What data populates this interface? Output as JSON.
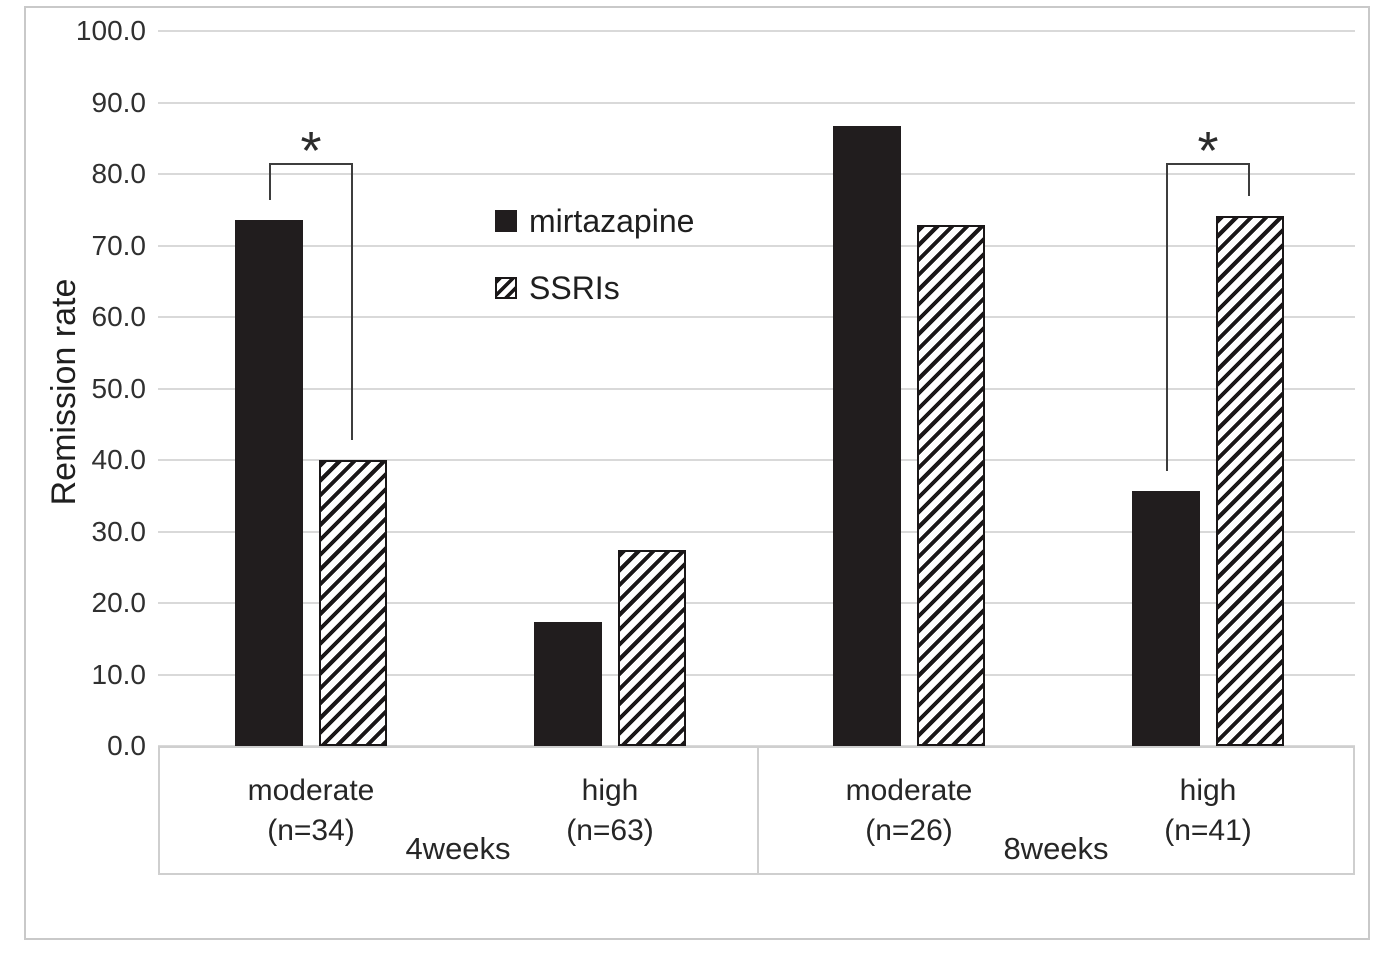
{
  "figure": {
    "background_color": "#ffffff",
    "border_color": "#c9c9c9"
  },
  "chart_data": {
    "type": "bar",
    "title": "",
    "ylabel": "Remission rate",
    "xlabel": "",
    "ylim": [
      0,
      100
    ],
    "ytick_step": 10,
    "ytick_labels": [
      "100.0",
      "90.0",
      "80.0",
      "70.0",
      "60.0",
      "50.0",
      "40.0",
      "30.0",
      "20.0",
      "10.0",
      "0.0"
    ],
    "grid": true,
    "legend_position": "inside-upper-left",
    "series": [
      {
        "name": "mirtazapine",
        "fill": "solid",
        "color": "#211d1e"
      },
      {
        "name": "SSRIs",
        "fill": "diagonal-hatch",
        "color": "#1a1718"
      }
    ],
    "sections": [
      {
        "label": "4weeks",
        "categories": [
          {
            "label": "moderate",
            "sublabel": "(n=34)",
            "values": {
              "mirtazapine": 73.5,
              "SSRIs": 40.0
            }
          },
          {
            "label": "high",
            "sublabel": "(n=63)",
            "values": {
              "mirtazapine": 17.3,
              "SSRIs": 27.4
            }
          }
        ]
      },
      {
        "label": "8weeks",
        "categories": [
          {
            "label": "moderate",
            "sublabel": "(n=26)",
            "values": {
              "mirtazapine": 86.7,
              "SSRIs": 72.8
            }
          },
          {
            "label": "high",
            "sublabel": "(n=41)",
            "values": {
              "mirtazapine": 35.6,
              "SSRIs": 74.1
            }
          }
        ]
      }
    ],
    "annotations": [
      {
        "symbol": "*",
        "section": "4weeks",
        "category": "moderate",
        "between": [
          "mirtazapine",
          "SSRIs"
        ]
      },
      {
        "symbol": "*",
        "section": "8weeks",
        "category": "high",
        "between": [
          "mirtazapine",
          "SSRIs"
        ]
      }
    ]
  }
}
